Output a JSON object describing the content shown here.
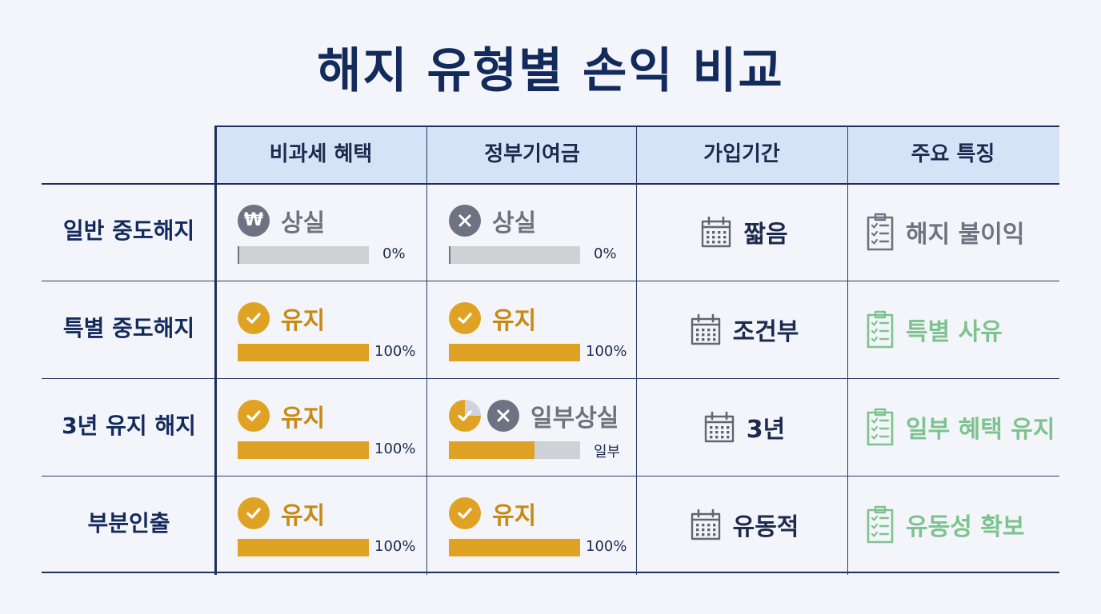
{
  "title": "해지 유형별 손익 비교",
  "columns": [
    "비과세 혜택",
    "정부기여금",
    "가입기간",
    "주요 특징"
  ],
  "rows": [
    {
      "label": "일반 중도해지",
      "tax": {
        "icon": "won-icon",
        "status": "상실",
        "tone": "gray",
        "fill": 0,
        "pct": "0%"
      },
      "gov": {
        "icon": "x-icon",
        "status": "상실",
        "tone": "gray",
        "fill": 0,
        "pct": "0%"
      },
      "period": "짧음",
      "feature": {
        "text": "해지 불이익",
        "tone": "gray"
      }
    },
    {
      "label": "특별 중도해지",
      "tax": {
        "icon": "check-icon",
        "status": "유지",
        "tone": "ok",
        "fill": 100,
        "pct": "100%"
      },
      "gov": {
        "icon": "check-icon",
        "status": "유지",
        "tone": "ok",
        "fill": 100,
        "pct": "100%"
      },
      "period": "조건부",
      "feature": {
        "text": "특별 사유",
        "tone": "green"
      }
    },
    {
      "label": "3년 유지 해지",
      "tax": {
        "icon": "check-icon",
        "status": "유지",
        "tone": "ok",
        "fill": 100,
        "pct": "100%"
      },
      "gov": {
        "icon": "partial-x-icon",
        "status": "일부상실",
        "tone": "gray",
        "fill": 65,
        "pct": "일부"
      },
      "period": "3년",
      "feature": {
        "text": "일부 혜택 유지",
        "tone": "green"
      }
    },
    {
      "label": "부분인출",
      "tax": {
        "icon": "check-icon",
        "status": "유지",
        "tone": "ok",
        "fill": 100,
        "pct": "100%"
      },
      "gov": {
        "icon": "check-icon",
        "status": "유지",
        "tone": "ok",
        "fill": 100,
        "pct": "100%"
      },
      "period": "유동적",
      "feature": {
        "text": "유동성 확보",
        "tone": "green"
      }
    }
  ],
  "colors": {
    "accent": "#e0a224",
    "navy": "#132a5c",
    "gray": "#6d7380",
    "green": "#7ec38f",
    "header_bg": "#d6e3f7"
  }
}
